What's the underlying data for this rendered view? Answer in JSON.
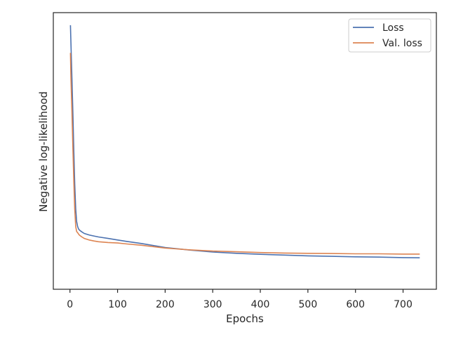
{
  "chart_data": {
    "type": "line",
    "title": "",
    "xlabel": "Epochs",
    "ylabel": "Negative log-likelihood",
    "xlim": [
      -35,
      770
    ],
    "ylim": [
      -0.05,
      1.05
    ],
    "xticks": [
      0,
      100,
      200,
      300,
      400,
      500,
      600,
      700
    ],
    "yticks_shown": false,
    "grid": false,
    "legend": "upper right",
    "colors": {
      "loss": "#4c72b0",
      "val_loss": "#dd8452",
      "axis": "#262626"
    },
    "series": [
      {
        "name": "Loss",
        "color": "#4c72b0",
        "x": [
          1,
          2,
          4,
          6,
          8,
          10,
          12,
          14,
          16,
          18,
          20,
          25,
          30,
          40,
          50,
          60,
          80,
          100,
          120,
          150,
          200,
          250,
          300,
          350,
          400,
          450,
          500,
          550,
          600,
          650,
          700,
          735
        ],
        "y": [
          1.0,
          0.93,
          0.79,
          0.66,
          0.5,
          0.37,
          0.27,
          0.22,
          0.2,
          0.19,
          0.185,
          0.178,
          0.172,
          0.166,
          0.162,
          0.158,
          0.152,
          0.146,
          0.14,
          0.132,
          0.116,
          0.106,
          0.098,
          0.093,
          0.089,
          0.086,
          0.083,
          0.081,
          0.079,
          0.078,
          0.076,
          0.075
        ]
      },
      {
        "name": "Val. loss",
        "color": "#dd8452",
        "x": [
          1,
          2,
          4,
          6,
          8,
          10,
          12,
          14,
          16,
          18,
          20,
          25,
          30,
          40,
          50,
          60,
          80,
          100,
          120,
          150,
          200,
          250,
          300,
          350,
          400,
          450,
          500,
          550,
          600,
          650,
          700,
          735
        ],
        "y": [
          0.89,
          0.79,
          0.66,
          0.52,
          0.38,
          0.27,
          0.2,
          0.18,
          0.175,
          0.17,
          0.165,
          0.158,
          0.152,
          0.146,
          0.142,
          0.139,
          0.136,
          0.134,
          0.13,
          0.125,
          0.114,
          0.107,
          0.102,
          0.099,
          0.096,
          0.094,
          0.093,
          0.092,
          0.091,
          0.091,
          0.09,
          0.09
        ]
      }
    ]
  }
}
